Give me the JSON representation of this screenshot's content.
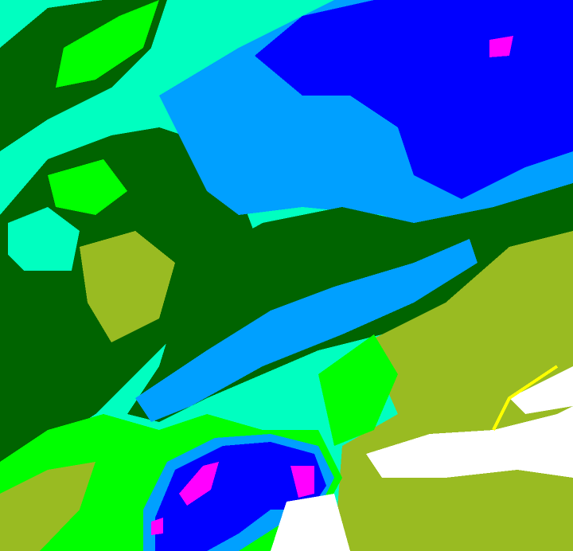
{
  "palette": {
    "dark_green": "#006400",
    "green": "#00ff00",
    "mint": "#00ffc0",
    "light_blue": "#00a0ff",
    "blue": "#0000ff",
    "magenta": "#ff00ff",
    "olive": "#99bb22",
    "white": "#ffffff",
    "yellow": "#ffff00"
  }
}
